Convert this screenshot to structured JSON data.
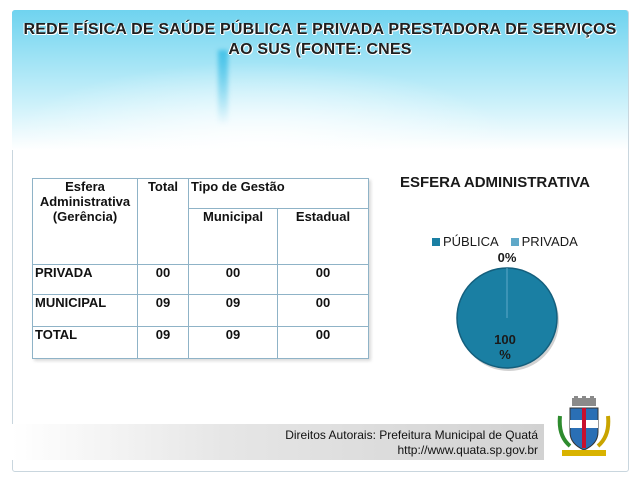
{
  "header": {
    "title_line1": "REDE FÍSICA DE SAÚDE PÚBLICA E PRIVADA PRESTADORA DE SERVIÇOS",
    "title_line2": "AO SUS (FONTE: CNES"
  },
  "table": {
    "headers": {
      "esfera": "Esfera Administrativa (Gerência)",
      "total": "Total",
      "tipo_gestao": "Tipo de Gestão",
      "municipal": "Municipal",
      "estadual": "Estadual"
    },
    "rows": [
      {
        "label": "PRIVADA",
        "total": "00",
        "municipal": "00",
        "estadual": "00"
      },
      {
        "label": "MUNICIPAL",
        "total": "09",
        "municipal": "09",
        "estadual": "00"
      },
      {
        "label": "TOTAL",
        "total": "09",
        "municipal": "09",
        "estadual": "00"
      }
    ]
  },
  "chart_data": {
    "type": "pie",
    "title": "ESFERA ADMINISTRATIVA",
    "legend_position": "top",
    "categories": [
      "PÚBLICA",
      "PRIVADA"
    ],
    "values": [
      100,
      0
    ],
    "data_labels": [
      "100 %",
      "0%"
    ],
    "colors": [
      "#1a7fa3",
      "#5fa8c8"
    ]
  },
  "footer": {
    "line1": "Direitos Autorais: Prefeitura Municipal de Quatá",
    "line2": "http://www.quata.sp.gov.br"
  }
}
